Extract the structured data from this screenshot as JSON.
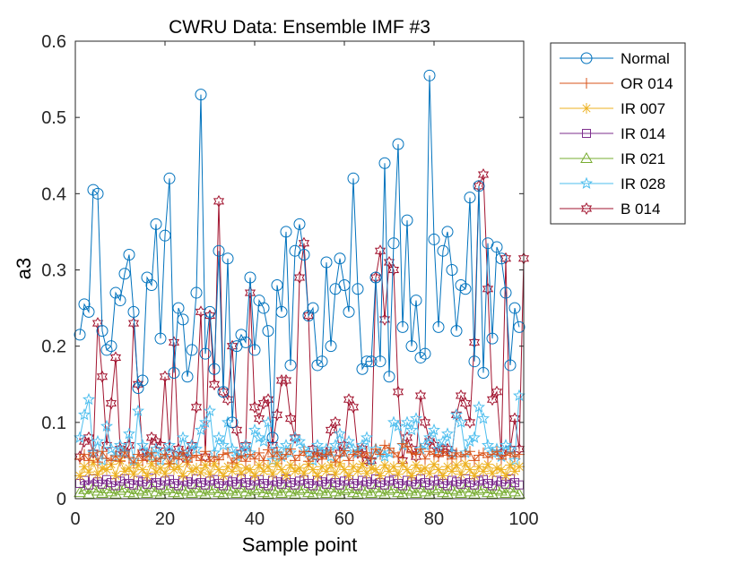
{
  "chart_data": {
    "type": "line",
    "title": "CWRU Data: Ensemble IMF #3",
    "xlabel": "Sample point",
    "ylabel": "a3",
    "xlim": [
      0,
      100
    ],
    "ylim": [
      0,
      0.6
    ],
    "xticks": [
      0,
      20,
      40,
      60,
      80,
      100
    ],
    "yticks": [
      0,
      0.1,
      0.2,
      0.3,
      0.4,
      0.5,
      0.6
    ],
    "xtick_labels": [
      "0",
      "20",
      "40",
      "60",
      "80",
      "100"
    ],
    "ytick_labels": [
      "0",
      "0.1",
      "0.2",
      "0.3",
      "0.4",
      "0.5",
      "0.6"
    ],
    "grid": false,
    "legend_position": "outside-top-right",
    "x_start": 1,
    "x_step": 1,
    "series": [
      {
        "name": "Normal",
        "color": "#0072BD",
        "marker": "circle",
        "values": [
          0.215,
          0.255,
          0.245,
          0.405,
          0.4,
          0.22,
          0.195,
          0.2,
          0.27,
          0.26,
          0.295,
          0.32,
          0.245,
          0.145,
          0.155,
          0.29,
          0.28,
          0.36,
          0.21,
          0.345,
          0.42,
          0.165,
          0.25,
          0.235,
          0.16,
          0.195,
          0.27,
          0.53,
          0.19,
          0.245,
          0.17,
          0.325,
          0.14,
          0.315,
          0.1,
          0.2,
          0.215,
          0.205,
          0.29,
          0.195,
          0.26,
          0.25,
          0.22,
          0.08,
          0.28,
          0.245,
          0.35,
          0.175,
          0.325,
          0.36,
          0.32,
          0.24,
          0.25,
          0.175,
          0.18,
          0.31,
          0.2,
          0.275,
          0.315,
          0.28,
          0.245,
          0.42,
          0.275,
          0.17,
          0.18,
          0.18,
          0.29,
          0.18,
          0.44,
          0.16,
          0.335,
          0.465,
          0.225,
          0.365,
          0.2,
          0.26,
          0.185,
          0.19,
          0.555,
          0.34,
          0.225,
          0.325,
          0.35,
          0.3,
          0.22,
          0.28,
          0.275,
          0.395,
          0.18,
          0.41,
          0.165,
          0.335,
          0.21,
          0.33,
          0.315,
          0.27,
          0.175,
          0.25,
          0.225
        ]
      },
      {
        "name": "OR 014",
        "color": "#D95319",
        "marker": "plus",
        "values": [
          0.052,
          0.058,
          0.05,
          0.06,
          0.048,
          0.062,
          0.053,
          0.05,
          0.056,
          0.049,
          0.061,
          0.054,
          0.047,
          0.058,
          0.05,
          0.055,
          0.06,
          0.049,
          0.053,
          0.058,
          0.046,
          0.055,
          0.052,
          0.06,
          0.048,
          0.054,
          0.057,
          0.05,
          0.062,
          0.049,
          0.055,
          0.051,
          0.058,
          0.06,
          0.047,
          0.053,
          0.056,
          0.049,
          0.058,
          0.052,
          0.06,
          0.05,
          0.064,
          0.055,
          0.061,
          0.052,
          0.058,
          0.065,
          0.05,
          0.057,
          0.062,
          0.049,
          0.055,
          0.06,
          0.052,
          0.058,
          0.061,
          0.048,
          0.056,
          0.063,
          0.05,
          0.058,
          0.062,
          0.055,
          0.06,
          0.052,
          0.065,
          0.058,
          0.07,
          0.066,
          0.06,
          0.055,
          0.072,
          0.068,
          0.06,
          0.058,
          0.065,
          0.052,
          0.062,
          0.058,
          0.055,
          0.062,
          0.057,
          0.052,
          0.06,
          0.055,
          0.058,
          0.062,
          0.05,
          0.057,
          0.06,
          0.054,
          0.058,
          0.062,
          0.052,
          0.057,
          0.06,
          0.055,
          0.058
        ]
      },
      {
        "name": "IR 007",
        "color": "#EDB120",
        "marker": "asterisk",
        "values": [
          0.03,
          0.042,
          0.035,
          0.048,
          0.032,
          0.04,
          0.038,
          0.045,
          0.03,
          0.05,
          0.036,
          0.04,
          0.032,
          0.044,
          0.038,
          0.03,
          0.046,
          0.035,
          0.04,
          0.033,
          0.045,
          0.038,
          0.042,
          0.03,
          0.048,
          0.036,
          0.04,
          0.034,
          0.044,
          0.032,
          0.046,
          0.038,
          0.03,
          0.042,
          0.036,
          0.045,
          0.033,
          0.04,
          0.038,
          0.03,
          0.044,
          0.036,
          0.042,
          0.032,
          0.046,
          0.038,
          0.03,
          0.044,
          0.036,
          0.04,
          0.033,
          0.045,
          0.038,
          0.03,
          0.042,
          0.036,
          0.044,
          0.032,
          0.046,
          0.038,
          0.03,
          0.042,
          0.036,
          0.045,
          0.033,
          0.04,
          0.038,
          0.03,
          0.044,
          0.036,
          0.042,
          0.032,
          0.046,
          0.038,
          0.03,
          0.044,
          0.036,
          0.04,
          0.033,
          0.045,
          0.038,
          0.03,
          0.042,
          0.036,
          0.044,
          0.032,
          0.046,
          0.038,
          0.03,
          0.042,
          0.036,
          0.045,
          0.033,
          0.04,
          0.038,
          0.03,
          0.044,
          0.036,
          0.042
        ]
      },
      {
        "name": "IR 014",
        "color": "#7E2F8E",
        "marker": "square",
        "values": [
          0.02,
          0.024,
          0.018,
          0.026,
          0.022,
          0.019,
          0.025,
          0.021,
          0.017,
          0.023,
          0.026,
          0.02,
          0.018,
          0.024,
          0.022,
          0.019,
          0.027,
          0.021,
          0.018,
          0.023,
          0.025,
          0.02,
          0.017,
          0.024,
          0.022,
          0.019,
          0.026,
          0.021,
          0.018,
          0.023,
          0.025,
          0.02,
          0.017,
          0.024,
          0.022,
          0.019,
          0.026,
          0.021,
          0.018,
          0.023,
          0.025,
          0.02,
          0.017,
          0.024,
          0.022,
          0.019,
          0.026,
          0.021,
          0.018,
          0.023,
          0.025,
          0.02,
          0.017,
          0.024,
          0.022,
          0.019,
          0.026,
          0.021,
          0.018,
          0.023,
          0.025,
          0.02,
          0.017,
          0.024,
          0.022,
          0.019,
          0.026,
          0.021,
          0.018,
          0.023,
          0.025,
          0.02,
          0.017,
          0.024,
          0.022,
          0.019,
          0.026,
          0.021,
          0.018,
          0.023,
          0.025,
          0.02,
          0.017,
          0.024,
          0.022,
          0.019,
          0.026,
          0.021,
          0.018,
          0.023,
          0.025,
          0.02,
          0.017,
          0.024,
          0.022,
          0.019,
          0.026,
          0.021,
          0.018
        ]
      },
      {
        "name": "IR 021",
        "color": "#77AC30",
        "marker": "triangle",
        "values": [
          0.008,
          0.012,
          0.006,
          0.014,
          0.01,
          0.007,
          0.013,
          0.009,
          0.006,
          0.011,
          0.014,
          0.008,
          0.006,
          0.012,
          0.01,
          0.007,
          0.015,
          0.009,
          0.006,
          0.011,
          0.013,
          0.008,
          0.006,
          0.012,
          0.01,
          0.007,
          0.014,
          0.009,
          0.006,
          0.011,
          0.013,
          0.008,
          0.006,
          0.012,
          0.01,
          0.007,
          0.014,
          0.009,
          0.006,
          0.011,
          0.013,
          0.008,
          0.006,
          0.012,
          0.01,
          0.007,
          0.014,
          0.009,
          0.006,
          0.011,
          0.013,
          0.008,
          0.006,
          0.012,
          0.01,
          0.007,
          0.014,
          0.009,
          0.006,
          0.011,
          0.013,
          0.008,
          0.006,
          0.012,
          0.01,
          0.007,
          0.014,
          0.009,
          0.006,
          0.011,
          0.013,
          0.008,
          0.006,
          0.012,
          0.01,
          0.007,
          0.014,
          0.009,
          0.006,
          0.011,
          0.013,
          0.008,
          0.006,
          0.012,
          0.01,
          0.007,
          0.014,
          0.009,
          0.006,
          0.011,
          0.013,
          0.008,
          0.006,
          0.012,
          0.01,
          0.007,
          0.014,
          0.009,
          0.006
        ]
      },
      {
        "name": "IR 028",
        "color": "#4DBEEE",
        "marker": "pentagram",
        "values": [
          0.08,
          0.11,
          0.13,
          0.06,
          0.075,
          0.05,
          0.095,
          0.065,
          0.055,
          0.07,
          0.06,
          0.085,
          0.05,
          0.115,
          0.07,
          0.06,
          0.055,
          0.065,
          0.05,
          0.06,
          0.07,
          0.05,
          0.06,
          0.08,
          0.055,
          0.07,
          0.065,
          0.09,
          0.1,
          0.115,
          0.06,
          0.08,
          0.07,
          0.1,
          0.065,
          0.055,
          0.06,
          0.07,
          0.06,
          0.09,
          0.08,
          0.075,
          0.1,
          0.05,
          0.065,
          0.055,
          0.07,
          0.06,
          0.08,
          0.075,
          0.065,
          0.06,
          0.05,
          0.07,
          0.06,
          0.065,
          0.055,
          0.07,
          0.085,
          0.06,
          0.075,
          0.065,
          0.06,
          0.07,
          0.08,
          0.05,
          0.065,
          0.06,
          0.055,
          0.06,
          0.1,
          0.095,
          0.07,
          0.1,
          0.09,
          0.105,
          0.065,
          0.07,
          0.08,
          0.09,
          0.065,
          0.075,
          0.085,
          0.06,
          0.11,
          0.1,
          0.06,
          0.075,
          0.08,
          0.12,
          0.105,
          0.07,
          0.06,
          0.065,
          0.055,
          0.07,
          0.065,
          0.05,
          0.135
        ]
      },
      {
        "name": "B 014",
        "color": "#A2142F",
        "marker": "hexagram",
        "values": [
          0.055,
          0.075,
          0.08,
          0.06,
          0.23,
          0.16,
          0.07,
          0.125,
          0.185,
          0.065,
          0.06,
          0.07,
          0.23,
          0.15,
          0.06,
          0.055,
          0.08,
          0.075,
          0.07,
          0.16,
          0.06,
          0.205,
          0.065,
          0.055,
          0.06,
          0.07,
          0.12,
          0.245,
          0.055,
          0.24,
          0.15,
          0.39,
          0.14,
          0.13,
          0.2,
          0.09,
          0.06,
          0.07,
          0.27,
          0.12,
          0.105,
          0.125,
          0.13,
          0.07,
          0.11,
          0.155,
          0.155,
          0.105,
          0.08,
          0.29,
          0.335,
          0.24,
          0.065,
          0.055,
          0.06,
          0.06,
          0.09,
          0.1,
          0.06,
          0.07,
          0.13,
          0.12,
          0.06,
          0.065,
          0.05,
          0.05,
          0.29,
          0.325,
          0.235,
          0.31,
          0.3,
          0.14,
          0.05,
          0.08,
          0.065,
          0.055,
          0.135,
          0.1,
          0.075,
          0.07,
          0.06,
          0.065,
          0.065,
          0.06,
          0.11,
          0.135,
          0.125,
          0.1,
          0.205,
          0.41,
          0.425,
          0.275,
          0.13,
          0.14,
          0.06,
          0.315,
          0.065,
          0.105,
          0.065,
          0.315
        ]
      }
    ]
  }
}
